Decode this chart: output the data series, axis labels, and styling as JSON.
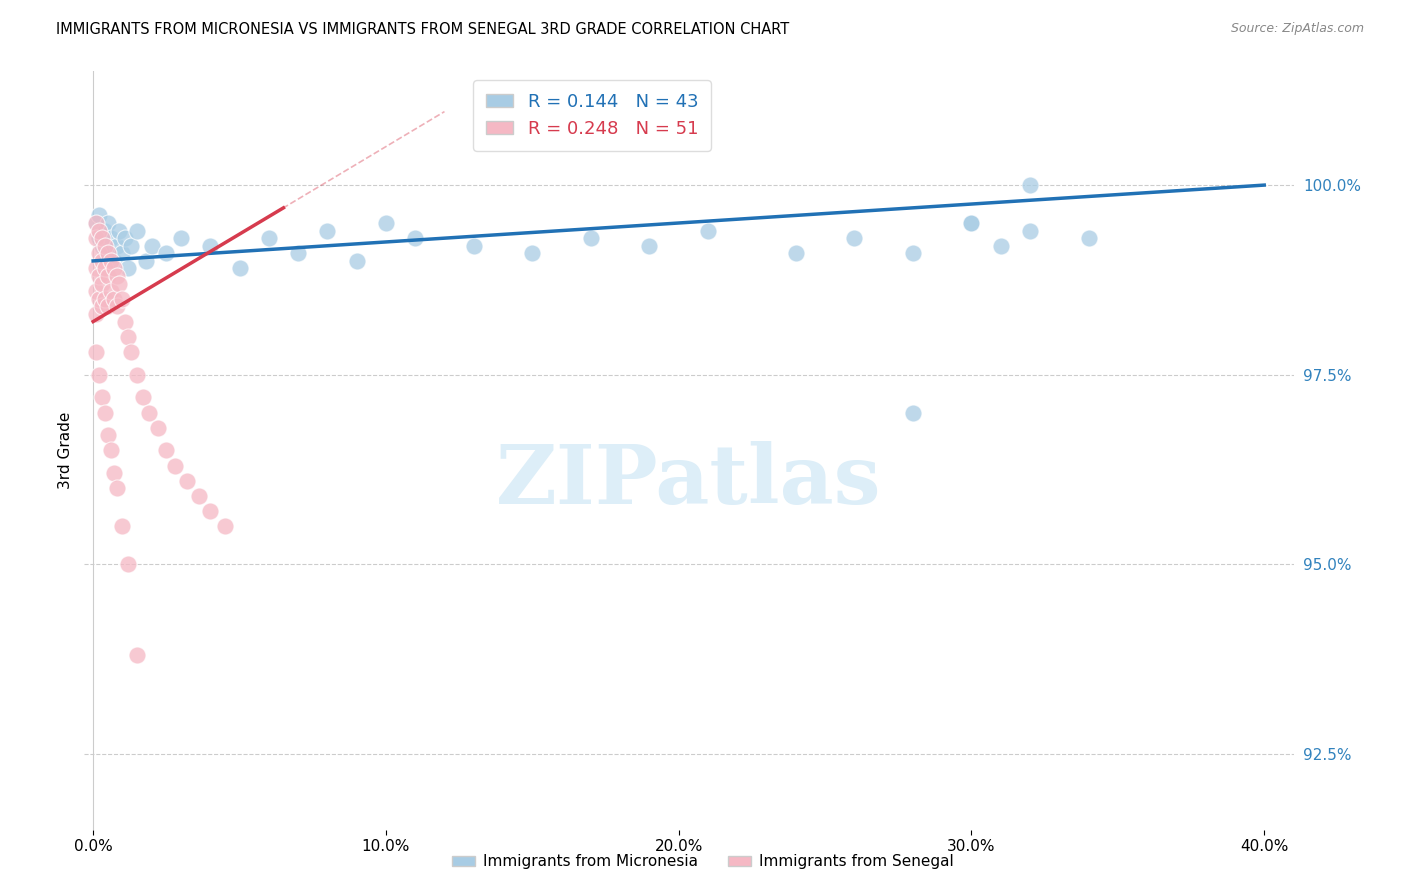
{
  "title": "IMMIGRANTS FROM MICRONESIA VS IMMIGRANTS FROM SENEGAL 3RD GRADE CORRELATION CHART",
  "source": "Source: ZipAtlas.com",
  "ylabel": "3rd Grade",
  "legend_label1": "Immigrants from Micronesia",
  "legend_label2": "Immigrants from Senegal",
  "R1": 0.144,
  "N1": 43,
  "R2": 0.248,
  "N2": 51,
  "xlim": [
    -0.003,
    0.41
  ],
  "ylim": [
    91.5,
    101.5
  ],
  "yticks": [
    92.5,
    95.0,
    97.5,
    100.0
  ],
  "ytick_labels": [
    "92.5%",
    "95.0%",
    "97.5%",
    "100.0%"
  ],
  "xticks": [
    0.0,
    0.1,
    0.2,
    0.3,
    0.4
  ],
  "xtick_labels": [
    "0.0%",
    "10.0%",
    "20.0%",
    "30.0%",
    "40.0%"
  ],
  "color_micronesia": "#a8cce4",
  "color_senegal": "#f5b8c4",
  "trend_color_micronesia": "#2171b5",
  "trend_color_senegal": "#d63b4e",
  "watermark": "ZIPatlas",
  "watermark_color": "#ddeef8",
  "mic_x": [
    0.001,
    0.002,
    0.002,
    0.003,
    0.004,
    0.005,
    0.005,
    0.006,
    0.007,
    0.008,
    0.009,
    0.01,
    0.011,
    0.012,
    0.013,
    0.015,
    0.018,
    0.02,
    0.025,
    0.03,
    0.04,
    0.05,
    0.06,
    0.07,
    0.08,
    0.09,
    0.1,
    0.11,
    0.13,
    0.15,
    0.17,
    0.19,
    0.21,
    0.24,
    0.26,
    0.28,
    0.3,
    0.31,
    0.32,
    0.34,
    0.28,
    0.3,
    0.32
  ],
  "mic_y": [
    99.5,
    99.3,
    99.6,
    99.2,
    99.4,
    99.1,
    99.5,
    99.3,
    99.0,
    99.2,
    99.4,
    99.1,
    99.3,
    98.9,
    99.2,
    99.4,
    99.0,
    99.2,
    99.1,
    99.3,
    99.2,
    98.9,
    99.3,
    99.1,
    99.4,
    99.0,
    99.5,
    99.3,
    99.2,
    99.1,
    99.3,
    99.2,
    99.4,
    99.1,
    99.3,
    97.0,
    99.5,
    99.2,
    99.4,
    99.3,
    99.1,
    99.5,
    100.0
  ],
  "sen_x": [
    0.001,
    0.001,
    0.001,
    0.001,
    0.001,
    0.002,
    0.002,
    0.002,
    0.002,
    0.003,
    0.003,
    0.003,
    0.003,
    0.004,
    0.004,
    0.004,
    0.005,
    0.005,
    0.005,
    0.006,
    0.006,
    0.007,
    0.007,
    0.008,
    0.008,
    0.009,
    0.01,
    0.011,
    0.012,
    0.013,
    0.015,
    0.017,
    0.019,
    0.022,
    0.025,
    0.028,
    0.032,
    0.036,
    0.04,
    0.045,
    0.001,
    0.002,
    0.003,
    0.004,
    0.005,
    0.006,
    0.007,
    0.008,
    0.01,
    0.012,
    0.015
  ],
  "sen_y": [
    99.5,
    99.3,
    98.9,
    98.6,
    98.3,
    99.4,
    99.1,
    98.8,
    98.5,
    99.3,
    99.0,
    98.7,
    98.4,
    99.2,
    98.9,
    98.5,
    99.1,
    98.8,
    98.4,
    99.0,
    98.6,
    98.9,
    98.5,
    98.8,
    98.4,
    98.7,
    98.5,
    98.2,
    98.0,
    97.8,
    97.5,
    97.2,
    97.0,
    96.8,
    96.5,
    96.3,
    96.1,
    95.9,
    95.7,
    95.5,
    97.8,
    97.5,
    97.2,
    97.0,
    96.7,
    96.5,
    96.2,
    96.0,
    95.5,
    95.0,
    93.8
  ]
}
